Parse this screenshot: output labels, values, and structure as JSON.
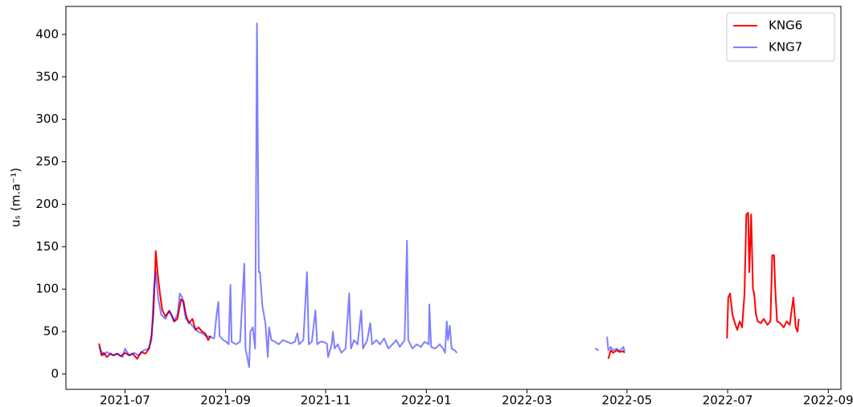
{
  "chart_data": {
    "type": "line",
    "ylabel": "uₛ (m.a⁻¹)",
    "xlim": [
      2021.402,
      2022.688
    ],
    "ylim": [
      -18,
      433
    ],
    "xticks": [
      {
        "value": 2021.5,
        "label": "2021-07"
      },
      {
        "value": 2021.667,
        "label": "2021-09"
      },
      {
        "value": 2021.833,
        "label": "2021-11"
      },
      {
        "value": 2022.0,
        "label": "2022-01"
      },
      {
        "value": 2022.167,
        "label": "2022-03"
      },
      {
        "value": 2022.333,
        "label": "2022-05"
      },
      {
        "value": 2022.5,
        "label": "2022-07"
      },
      {
        "value": 2022.667,
        "label": "2022-09"
      }
    ],
    "yticks": [
      0,
      50,
      100,
      150,
      200,
      250,
      300,
      350,
      400
    ],
    "legend": "upper right",
    "series": [
      {
        "name": "KNG6",
        "color": "#ff0000",
        "opacity": 1,
        "x": [
          2021.457,
          2021.461,
          2021.465,
          2021.47,
          2021.476,
          2021.481,
          2021.487,
          2021.493,
          2021.5,
          2021.507,
          2021.513,
          2021.52,
          2021.527,
          2021.534,
          2021.54,
          2021.544,
          2021.547,
          2021.55,
          2021.551,
          2021.554,
          2021.558,
          2021.562,
          2021.567,
          2021.573,
          2021.577,
          2021.582,
          2021.587,
          2021.593,
          2021.597,
          2021.601,
          2021.606,
          2021.612,
          2021.617,
          2021.622,
          2021.628,
          2021.633,
          2021.638,
          2021.642,
          2022.0,
          2022.302,
          2022.306,
          2022.31,
          2022.316,
          2022.321,
          2022.327,
          2022.329,
          2022.4,
          2022.499,
          2022.501,
          2022.504,
          2022.508,
          2022.512,
          2022.516,
          2022.52,
          2022.524,
          2022.528,
          2022.531,
          2022.534,
          2022.536,
          2022.539,
          2022.542,
          2022.544,
          2022.547,
          2022.55,
          2022.555,
          2022.56,
          2022.566,
          2022.571,
          2022.574,
          2022.577,
          2022.579,
          2022.582,
          2022.587,
          2022.593,
          2022.598,
          2022.603,
          2022.609,
          2022.613,
          2022.616,
          2022.618
        ],
        "values": [
          36,
          22,
          25,
          20,
          24,
          22,
          24,
          21,
          25,
          22,
          24,
          18,
          26,
          24,
          30,
          45,
          70,
          120,
          145,
          120,
          95,
          75,
          68,
          74,
          70,
          62,
          65,
          88,
          86,
          70,
          60,
          65,
          52,
          55,
          50,
          48,
          40,
          45,
          null,
          18,
          28,
          25,
          28,
          26,
          27,
          25,
          null,
          42,
          90,
          95,
          70,
          60,
          52,
          62,
          55,
          95,
          188,
          190,
          120,
          188,
          100,
          95,
          70,
          62,
          60,
          65,
          58,
          62,
          140,
          140,
          100,
          62,
          60,
          55,
          62,
          58,
          90,
          55,
          50,
          65
        ]
      },
      {
        "name": "KNG7",
        "color": "#0000ff",
        "opacity": 0.5,
        "x": [
          2021.457,
          2021.464,
          2021.47,
          2021.48,
          2021.488,
          2021.496,
          2021.5,
          2021.507,
          2021.515,
          2021.523,
          2021.531,
          2021.539,
          2021.544,
          2021.548,
          2021.551,
          2021.555,
          2021.56,
          2021.567,
          2021.574,
          2021.581,
          2021.587,
          2021.591,
          2021.595,
          2021.601,
          2021.608,
          2021.614,
          2021.621,
          2021.628,
          2021.634,
          2021.641,
          2021.648,
          2021.652,
          2021.655,
          2021.657,
          2021.663,
          2021.668,
          2021.672,
          2021.675,
          2021.677,
          2021.684,
          2021.691,
          2021.698,
          2021.7,
          2021.706,
          2021.708,
          2021.712,
          2021.716,
          2021.719,
          2021.722,
          2021.724,
          2021.728,
          2021.733,
          2021.737,
          2021.739,
          2021.743,
          2021.749,
          2021.755,
          2021.762,
          2021.769,
          2021.776,
          2021.782,
          2021.786,
          2021.789,
          2021.796,
          2021.802,
          2021.805,
          2021.81,
          2021.816,
          2021.819,
          2021.824,
          2021.829,
          2021.835,
          2021.837,
          2021.843,
          2021.845,
          2021.848,
          2021.853,
          2021.859,
          2021.866,
          2021.872,
          2021.875,
          2021.88,
          2021.886,
          2021.892,
          2021.895,
          2021.902,
          2021.907,
          2021.91,
          2021.917,
          2021.923,
          2021.93,
          2021.937,
          2021.944,
          2021.95,
          2021.956,
          2021.964,
          2021.968,
          2021.97,
          2021.977,
          2021.984,
          2021.991,
          2021.997,
          2022.004,
          2022.005,
          2022.008,
          2022.015,
          2022.022,
          2022.028,
          2022.031,
          2022.034,
          2022.036,
          2022.039,
          2022.042,
          2022.047,
          2022.051,
          2022.2,
          2022.28,
          2022.286,
          2022.29,
          2022.3,
          2022.302,
          2022.306,
          2022.31,
          2022.316,
          2022.321,
          2022.327,
          2022.329
        ],
        "values": [
          32,
          22,
          26,
          22,
          24,
          20,
          30,
          22,
          25,
          22,
          28,
          30,
          40,
          100,
          120,
          90,
          70,
          65,
          75,
          62,
          70,
          95,
          90,
          65,
          60,
          55,
          50,
          48,
          45,
          44,
          42,
          70,
          85,
          45,
          40,
          38,
          35,
          105,
          38,
          35,
          38,
          130,
          30,
          8,
          50,
          55,
          30,
          413,
          120,
          120,
          80,
          60,
          20,
          55,
          40,
          38,
          35,
          40,
          38,
          36,
          38,
          48,
          35,
          40,
          120,
          35,
          38,
          75,
          35,
          38,
          38,
          36,
          20,
          35,
          50,
          30,
          35,
          25,
          30,
          95,
          30,
          40,
          35,
          75,
          30,
          40,
          60,
          35,
          40,
          35,
          42,
          30,
          35,
          40,
          32,
          40,
          157,
          40,
          30,
          35,
          32,
          38,
          35,
          82,
          32,
          30,
          35,
          30,
          25,
          62,
          40,
          57,
          30,
          28,
          25,
          null,
          30,
          28,
          null,
          44,
          28,
          32,
          28,
          30,
          27,
          32,
          27
        ]
      }
    ]
  }
}
